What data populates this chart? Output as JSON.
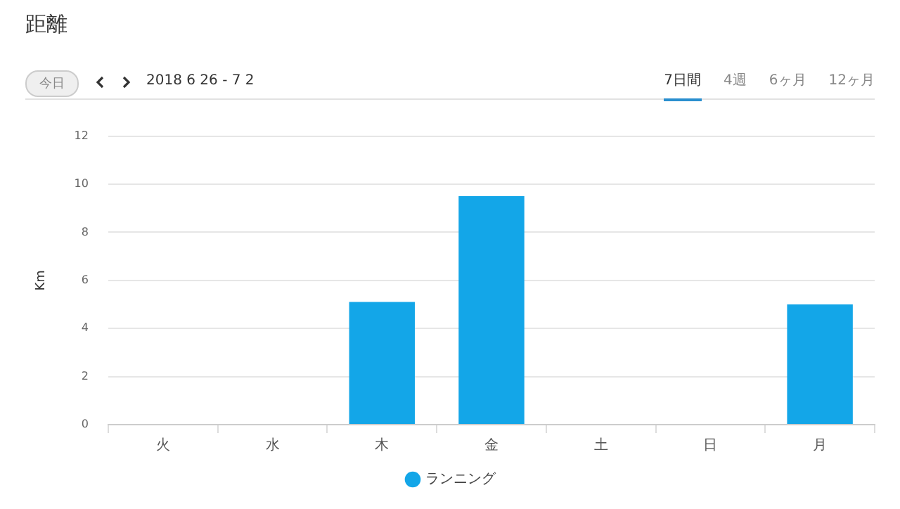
{
  "chart_data": {
    "type": "bar",
    "title": "距離",
    "subtitle": "2018 6 26 - 7 2",
    "annotations": [
      "今日",
      "7日間",
      "4週",
      "6ヶ月",
      "12ヶ月"
    ],
    "ylabel": "Km",
    "categories": [
      "火",
      "水",
      "木",
      "金",
      "土",
      "日",
      "月"
    ],
    "series": [
      {
        "name": "ランニング",
        "color": "#13a6e8",
        "values": [
          0,
          0,
          5.1,
          9.5,
          0,
          0,
          5.0
        ]
      }
    ],
    "ylim": [
      0,
      12
    ],
    "yticks": [
      0,
      2,
      4,
      6,
      8,
      10,
      12
    ],
    "grid": "y",
    "legend": "bottom"
  }
}
